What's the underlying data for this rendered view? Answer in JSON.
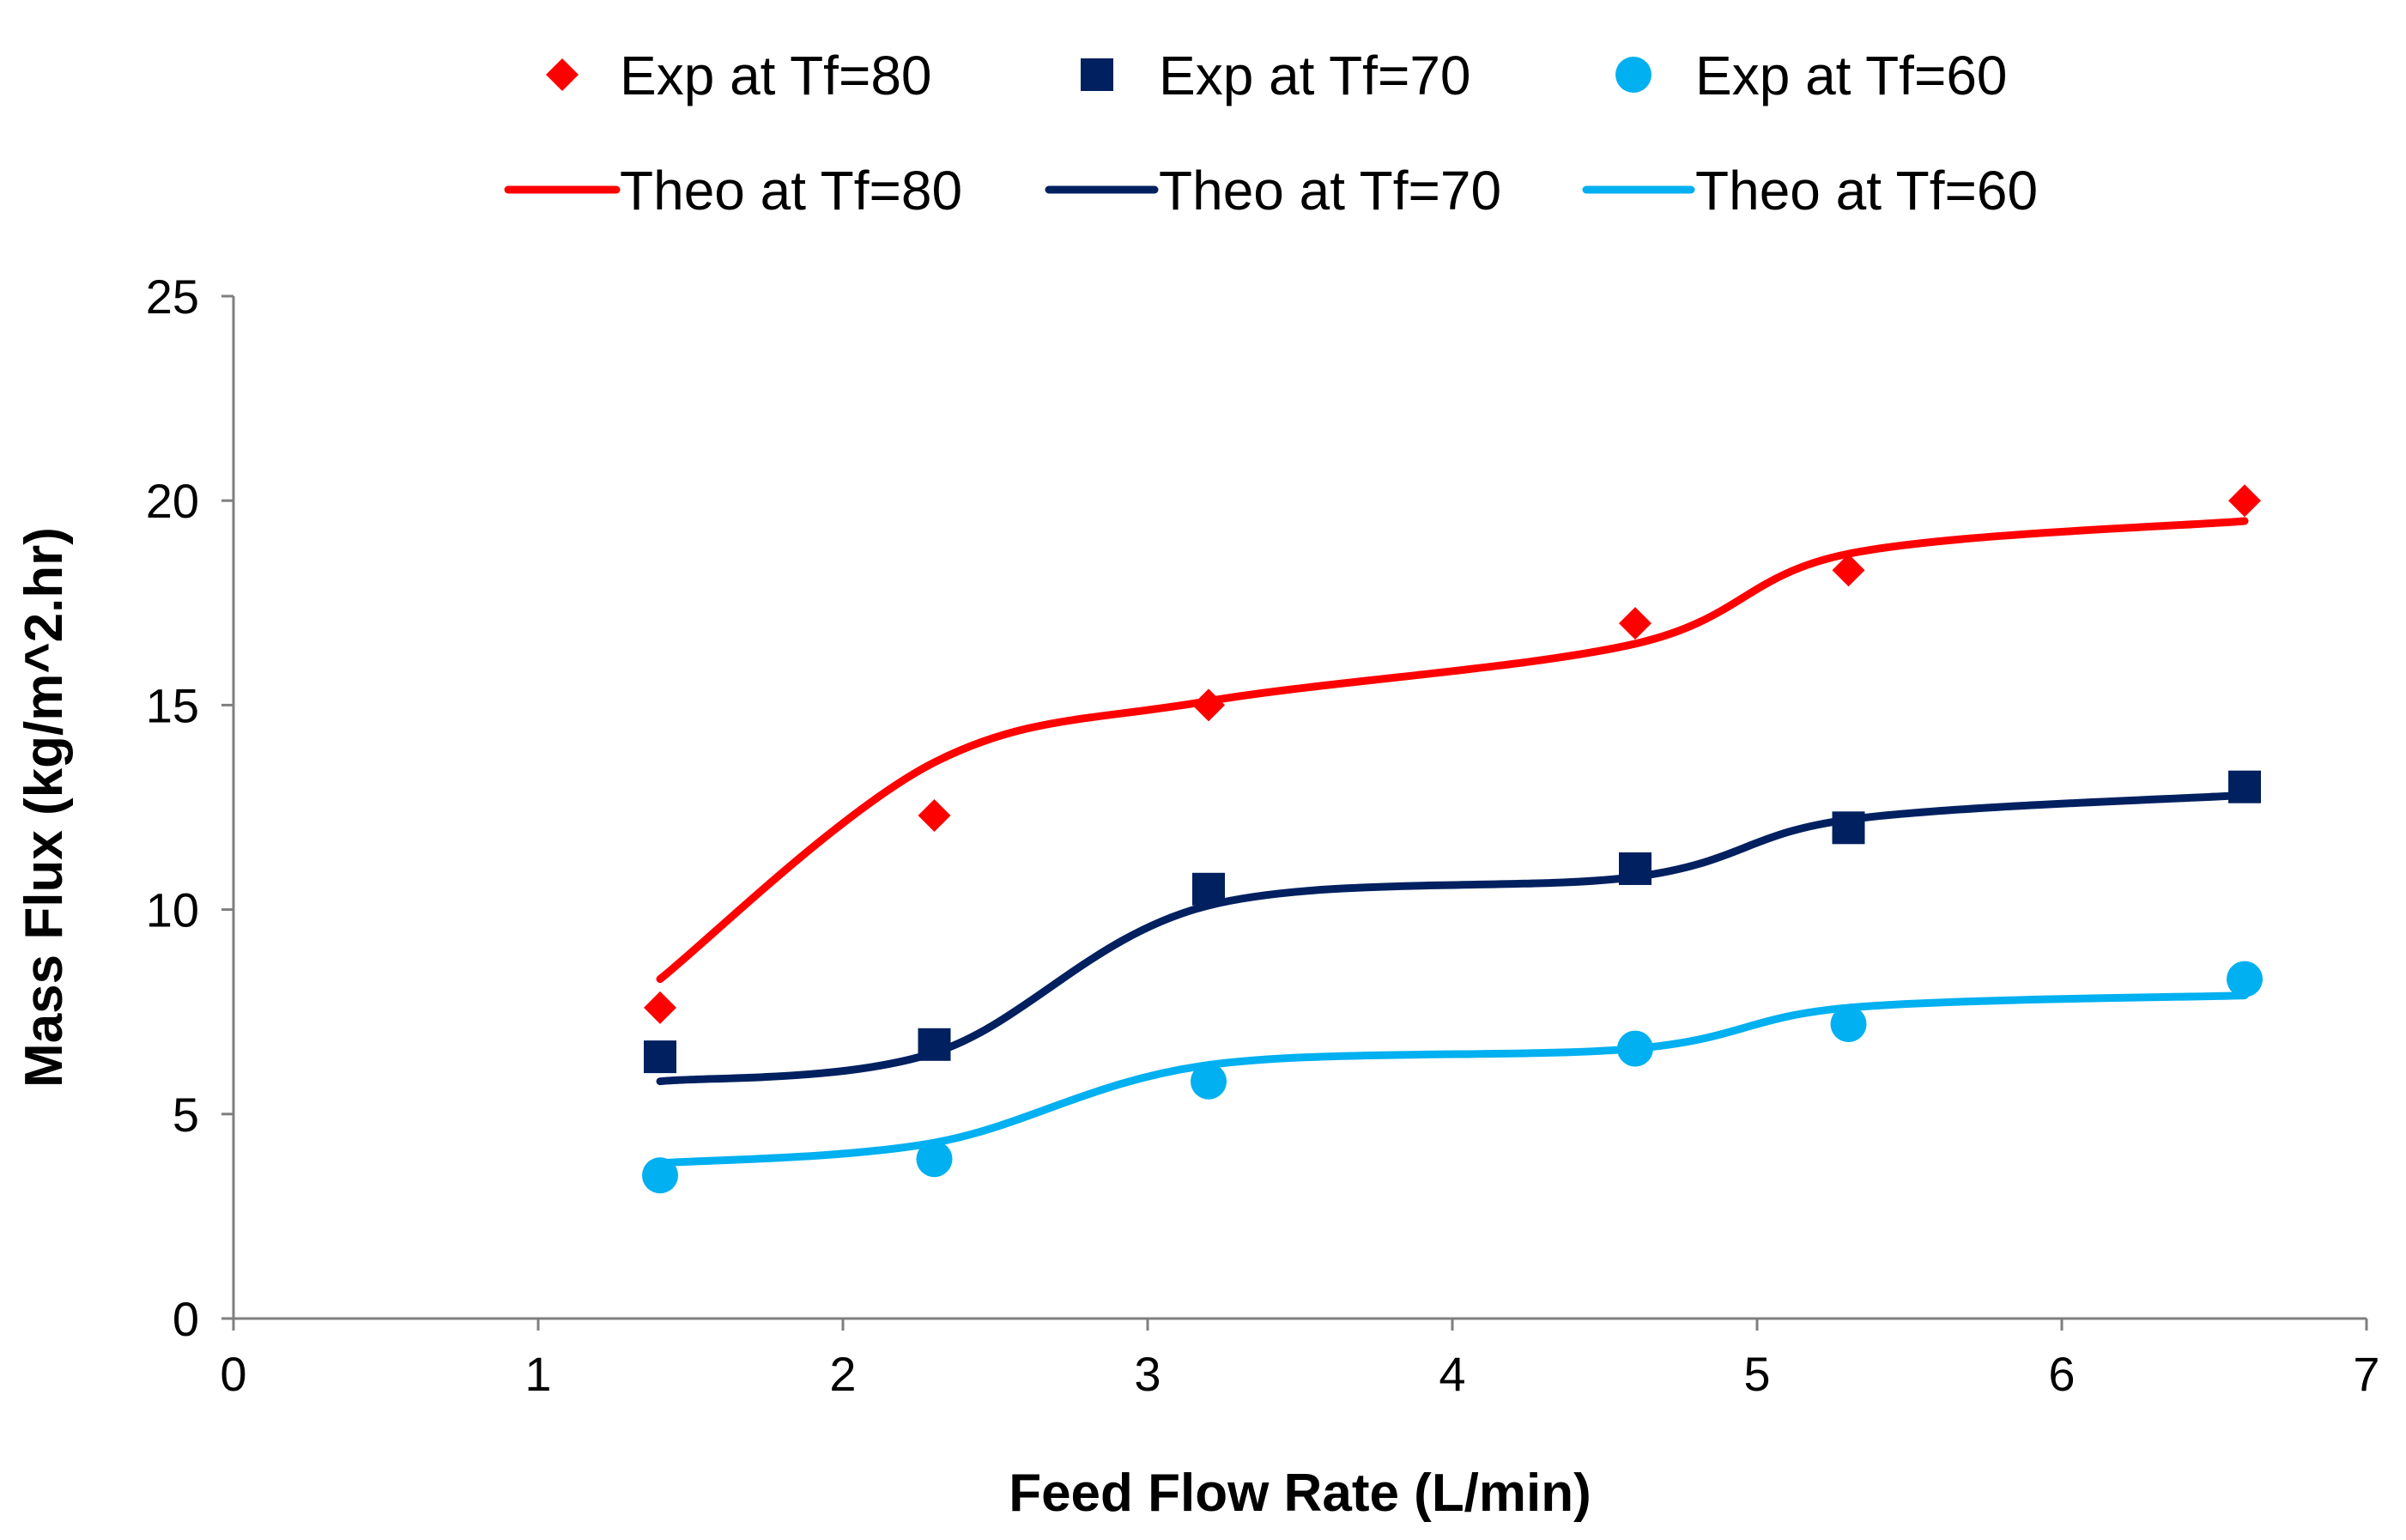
{
  "chart_data": {
    "type": "scatter",
    "title": "",
    "xlabel": "Feed Flow Rate (L/min)",
    "ylabel": "Mass Flux (kg/m^2.hr)",
    "xlim": [
      0,
      7
    ],
    "ylim": [
      0,
      25
    ],
    "x_ticks": [
      0,
      1,
      2,
      3,
      4,
      5,
      6,
      7
    ],
    "y_ticks": [
      0,
      5,
      10,
      15,
      20,
      25
    ],
    "grid": false,
    "legend_position": "top",
    "x": [
      1.4,
      2.3,
      3.2,
      4.6,
      5.3,
      6.6
    ],
    "series": [
      {
        "name": "Exp at Tf=80",
        "kind": "markers",
        "marker": "diamond",
        "color": "#FF0000",
        "values": [
          7.6,
          12.3,
          15.0,
          17.0,
          18.3,
          20.0
        ]
      },
      {
        "name": "Exp at Tf=70",
        "kind": "markers",
        "marker": "square",
        "color": "#002060",
        "values": [
          6.4,
          6.7,
          10.5,
          11.0,
          12.0,
          13.0
        ]
      },
      {
        "name": "Exp at Tf=60",
        "kind": "markers",
        "marker": "circle",
        "color": "#00B0F0",
        "values": [
          3.5,
          3.9,
          5.8,
          6.6,
          7.2,
          8.3
        ]
      },
      {
        "name": "Theo at Tf=80",
        "kind": "line",
        "color": "#FF0000",
        "values": [
          8.3,
          13.6,
          15.1,
          16.5,
          18.7,
          19.5
        ]
      },
      {
        "name": "Theo at Tf=70",
        "kind": "line",
        "color": "#002060",
        "values": [
          5.8,
          6.5,
          10.1,
          10.8,
          12.2,
          12.8
        ]
      },
      {
        "name": "Theo at Tf=60",
        "kind": "line",
        "color": "#00B0F0",
        "values": [
          3.8,
          4.3,
          6.2,
          6.6,
          7.6,
          7.9
        ]
      }
    ]
  }
}
